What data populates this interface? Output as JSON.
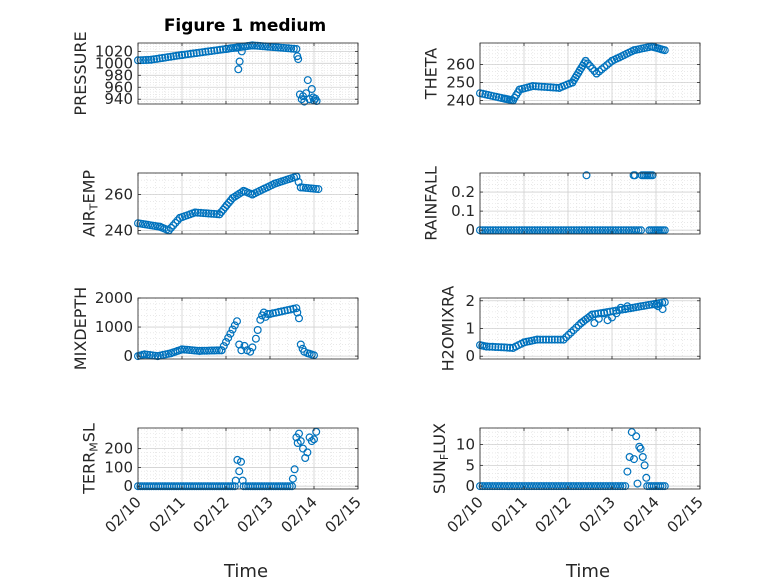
{
  "chart_data": {
    "type": "scatter",
    "title": "Figure 1 medium",
    "marker_color": "#0072BD",
    "x_tick_labels": [
      "02/10",
      "02/11",
      "02/12",
      "02/13",
      "02/14",
      "02/15"
    ],
    "x_tick_values": [
      10,
      11,
      12,
      13,
      14,
      15
    ],
    "x_units": "days (February)",
    "xlim": [
      10,
      15
    ],
    "grid": true,
    "minor_grid": true,
    "subplots": [
      {
        "id": "pressure",
        "ylabel": "PRESSURE",
        "ylim": [
          932,
          1034
        ],
        "yticks": [
          940,
          960,
          980,
          1000,
          1020
        ],
        "xlabel": "",
        "segments": [
          {
            "from": [
              10.0,
              1005
            ],
            "to": [
              10.3,
              1006
            ],
            "n": 6
          },
          {
            "from": [
              10.3,
              1006
            ],
            "to": [
              11.0,
              1014
            ],
            "n": 12
          },
          {
            "from": [
              11.0,
              1014
            ],
            "to": [
              12.0,
              1024
            ],
            "n": 16
          },
          {
            "from": [
              12.0,
              1024
            ],
            "to": [
              12.6,
              1030
            ],
            "n": 12
          },
          {
            "from": [
              12.6,
              1030
            ],
            "to": [
              13.6,
              1024
            ],
            "n": 18
          }
        ],
        "points": [
          [
            12.25,
            1026
          ],
          [
            12.28,
            990
          ],
          [
            12.31,
            1003
          ],
          [
            12.36,
            1020
          ],
          [
            13.62,
            1012
          ],
          [
            13.64,
            1007
          ],
          [
            13.68,
            948
          ],
          [
            13.72,
            940
          ],
          [
            13.75,
            945
          ],
          [
            13.78,
            936
          ],
          [
            13.82,
            950
          ],
          [
            13.86,
            972
          ],
          [
            13.9,
            940
          ],
          [
            13.95,
            957
          ],
          [
            13.98,
            943
          ],
          [
            14.0,
            938
          ],
          [
            14.03,
            941
          ],
          [
            14.06,
            937
          ]
        ]
      },
      {
        "id": "theta",
        "ylabel": "THETA",
        "ylim": [
          238,
          272
        ],
        "yticks": [
          240,
          250,
          260
        ],
        "xlabel": "",
        "segments": [
          {
            "from": [
              10.0,
              244
            ],
            "to": [
              10.55,
              241
            ],
            "n": 10
          },
          {
            "from": [
              10.55,
              241
            ],
            "to": [
              10.75,
              240
            ],
            "n": 6
          },
          {
            "from": [
              10.75,
              240
            ],
            "to": [
              10.9,
              246
            ],
            "n": 5
          },
          {
            "from": [
              10.9,
              246
            ],
            "to": [
              11.2,
              248
            ],
            "n": 6
          },
          {
            "from": [
              11.2,
              248
            ],
            "to": [
              11.8,
              247
            ],
            "n": 10
          },
          {
            "from": [
              11.8,
              247
            ],
            "to": [
              12.1,
              250
            ],
            "n": 6
          },
          {
            "from": [
              12.1,
              250
            ],
            "to": [
              12.4,
              262
            ],
            "n": 10
          },
          {
            "from": [
              12.4,
              262
            ],
            "to": [
              12.65,
              255
            ],
            "n": 6
          },
          {
            "from": [
              12.65,
              255
            ],
            "to": [
              13.0,
              262
            ],
            "n": 7
          },
          {
            "from": [
              13.0,
              262
            ],
            "to": [
              13.5,
              268
            ],
            "n": 10
          },
          {
            "from": [
              13.5,
              268
            ],
            "to": [
              13.9,
              270
            ],
            "n": 8
          },
          {
            "from": [
              13.9,
              270
            ],
            "to": [
              14.2,
              268
            ],
            "n": 8
          }
        ],
        "points": []
      },
      {
        "id": "air_temp",
        "ylabel": "AIR_TEMP",
        "ylim": [
          238,
          272
        ],
        "yticks": [
          240,
          260
        ],
        "xlabel": "",
        "segments": [
          {
            "from": [
              10.0,
              244
            ],
            "to": [
              10.5,
              242
            ],
            "n": 10
          },
          {
            "from": [
              10.5,
              242
            ],
            "to": [
              10.7,
              240
            ],
            "n": 5
          },
          {
            "from": [
              10.7,
              240
            ],
            "to": [
              10.95,
              247
            ],
            "n": 6
          },
          {
            "from": [
              10.95,
              247
            ],
            "to": [
              11.3,
              250
            ],
            "n": 7
          },
          {
            "from": [
              11.3,
              250
            ],
            "to": [
              11.85,
              249
            ],
            "n": 10
          },
          {
            "from": [
              11.85,
              249
            ],
            "to": [
              12.15,
              258
            ],
            "n": 8
          },
          {
            "from": [
              12.15,
              258
            ],
            "to": [
              12.4,
              262
            ],
            "n": 6
          },
          {
            "from": [
              12.4,
              262
            ],
            "to": [
              12.6,
              260
            ],
            "n": 5
          },
          {
            "from": [
              12.6,
              260
            ],
            "to": [
              13.1,
              266
            ],
            "n": 10
          },
          {
            "from": [
              13.1,
              266
            ],
            "to": [
              13.6,
              270
            ],
            "n": 10
          },
          {
            "from": [
              13.6,
              270
            ],
            "to": [
              13.7,
              264
            ],
            "n": 3
          },
          {
            "from": [
              13.7,
              264
            ],
            "to": [
              14.1,
              263
            ],
            "n": 8
          }
        ],
        "points": []
      },
      {
        "id": "rainfall",
        "ylabel": "RAINFALL",
        "ylim": [
          -0.02,
          0.3
        ],
        "yticks": [
          0,
          0.1,
          0.2
        ],
        "xlabel": "",
        "segments": [
          {
            "from": [
              10.0,
              0
            ],
            "to": [
              13.5,
              0
            ],
            "n": 60
          },
          {
            "from": [
              13.55,
              0
            ],
            "to": [
              13.66,
              0
            ],
            "n": 3
          },
          {
            "from": [
              13.85,
              0
            ],
            "to": [
              14.2,
              0
            ],
            "n": 9
          }
        ],
        "points": [
          [
            12.42,
            0.288
          ],
          [
            13.49,
            0.288
          ],
          [
            13.52,
            0.288
          ],
          [
            13.68,
            0.288
          ],
          [
            13.72,
            0.288
          ],
          [
            13.76,
            0.288
          ],
          [
            13.8,
            0.288
          ],
          [
            13.84,
            0.288
          ],
          [
            13.88,
            0.288
          ],
          [
            13.92,
            0.288
          ]
        ]
      },
      {
        "id": "mixdepth",
        "ylabel": "MIXDEPTH",
        "ylim": [
          -100,
          2000
        ],
        "yticks": [
          0,
          1000,
          2000
        ],
        "xlabel": "",
        "segments": [
          {
            "from": [
              10.0,
              0
            ],
            "to": [
              10.15,
              60
            ],
            "n": 4
          },
          {
            "from": [
              10.15,
              60
            ],
            "to": [
              10.45,
              0
            ],
            "n": 6
          },
          {
            "from": [
              10.45,
              0
            ],
            "to": [
              10.75,
              100
            ],
            "n": 6
          },
          {
            "from": [
              10.75,
              100
            ],
            "to": [
              11.0,
              230
            ],
            "n": 6
          },
          {
            "from": [
              11.0,
              230
            ],
            "to": [
              11.4,
              180
            ],
            "n": 8
          },
          {
            "from": [
              11.4,
              180
            ],
            "to": [
              11.9,
              200
            ],
            "n": 10
          },
          {
            "from": [
              11.9,
              200
            ],
            "to": [
              12.25,
              1200
            ],
            "n": 8
          },
          {
            "from": [
              13.0,
              1450
            ],
            "to": [
              13.6,
              1650
            ],
            "n": 10
          }
        ],
        "points": [
          [
            12.3,
            400
          ],
          [
            12.35,
            200
          ],
          [
            12.42,
            350
          ],
          [
            12.48,
            200
          ],
          [
            12.55,
            150
          ],
          [
            12.6,
            300
          ],
          [
            12.68,
            600
          ],
          [
            12.72,
            900
          ],
          [
            12.78,
            1250
          ],
          [
            12.82,
            1400
          ],
          [
            12.86,
            1500
          ],
          [
            12.9,
            1350
          ],
          [
            12.95,
            1450
          ],
          [
            13.62,
            1500
          ],
          [
            13.66,
            1300
          ],
          [
            13.7,
            400
          ],
          [
            13.74,
            250
          ],
          [
            13.78,
            150
          ],
          [
            13.85,
            100
          ],
          [
            13.9,
            80
          ],
          [
            13.95,
            50
          ],
          [
            14.0,
            30
          ]
        ]
      },
      {
        "id": "h2omixra",
        "ylabel": "H2OMIXRA",
        "ylim": [
          -0.1,
          2.1
        ],
        "yticks": [
          0,
          1,
          2
        ],
        "xlabel": "",
        "segments": [
          {
            "from": [
              10.0,
              0.4
            ],
            "to": [
              10.15,
              0.35
            ],
            "n": 4
          },
          {
            "from": [
              10.15,
              0.35
            ],
            "to": [
              10.75,
              0.3
            ],
            "n": 10
          },
          {
            "from": [
              10.75,
              0.3
            ],
            "to": [
              11.0,
              0.5
            ],
            "n": 5
          },
          {
            "from": [
              11.0,
              0.5
            ],
            "to": [
              11.3,
              0.6
            ],
            "n": 6
          },
          {
            "from": [
              11.3,
              0.6
            ],
            "to": [
              11.9,
              0.6
            ],
            "n": 10
          },
          {
            "from": [
              11.9,
              0.6
            ],
            "to": [
              12.3,
              1.2
            ],
            "n": 8
          },
          {
            "from": [
              12.3,
              1.2
            ],
            "to": [
              12.55,
              1.5
            ],
            "n": 6
          },
          {
            "from": [
              12.55,
              1.5
            ],
            "to": [
              13.3,
              1.7
            ],
            "n": 12
          },
          {
            "from": [
              13.3,
              1.7
            ],
            "to": [
              14.2,
              1.95
            ],
            "n": 16
          }
        ],
        "points": [
          [
            12.6,
            1.2
          ],
          [
            12.7,
            1.35
          ],
          [
            12.82,
            1.55
          ],
          [
            12.9,
            1.3
          ],
          [
            13.0,
            1.4
          ],
          [
            13.1,
            1.55
          ],
          [
            13.2,
            1.75
          ],
          [
            13.35,
            1.8
          ],
          [
            14.0,
            1.85
          ],
          [
            14.05,
            1.8
          ],
          [
            14.15,
            1.7
          ]
        ]
      },
      {
        "id": "terr_msl",
        "ylabel": "TERR_MSL",
        "ylim": [
          -15,
          310
        ],
        "yticks": [
          0,
          100,
          200
        ],
        "xlabel": "Time",
        "segments": [
          {
            "from": [
              10.0,
              0
            ],
            "to": [
              12.2,
              0
            ],
            "n": 44
          },
          {
            "from": [
              12.4,
              0
            ],
            "to": [
              13.5,
              0
            ],
            "n": 22
          }
        ],
        "points": [
          [
            12.22,
            30
          ],
          [
            12.26,
            140
          ],
          [
            12.3,
            80
          ],
          [
            12.34,
            130
          ],
          [
            12.38,
            30
          ],
          [
            13.52,
            40
          ],
          [
            13.56,
            90
          ],
          [
            13.6,
            260
          ],
          [
            13.63,
            230
          ],
          [
            13.66,
            280
          ],
          [
            13.7,
            240
          ],
          [
            13.75,
            200
          ],
          [
            13.8,
            150
          ],
          [
            13.85,
            180
          ],
          [
            13.9,
            260
          ],
          [
            13.95,
            240
          ],
          [
            14.0,
            250
          ],
          [
            14.05,
            290
          ]
        ]
      },
      {
        "id": "sun_flux",
        "ylabel": "SUN_FLUX",
        "ylim": [
          -0.7,
          14
        ],
        "yticks": [
          0,
          5,
          10
        ],
        "xlabel": "Time",
        "segments": [
          {
            "from": [
              10.0,
              0
            ],
            "to": [
              13.3,
              0
            ],
            "n": 60
          },
          {
            "from": [
              13.8,
              0
            ],
            "to": [
              14.2,
              0
            ],
            "n": 9
          }
        ],
        "points": [
          [
            13.35,
            3.5
          ],
          [
            13.4,
            7
          ],
          [
            13.45,
            13
          ],
          [
            13.5,
            6.5
          ],
          [
            13.55,
            12
          ],
          [
            13.58,
            0.6
          ],
          [
            13.62,
            9.5
          ],
          [
            13.65,
            9
          ],
          [
            13.7,
            7
          ],
          [
            13.74,
            5
          ],
          [
            13.78,
            2
          ]
        ]
      }
    ]
  }
}
